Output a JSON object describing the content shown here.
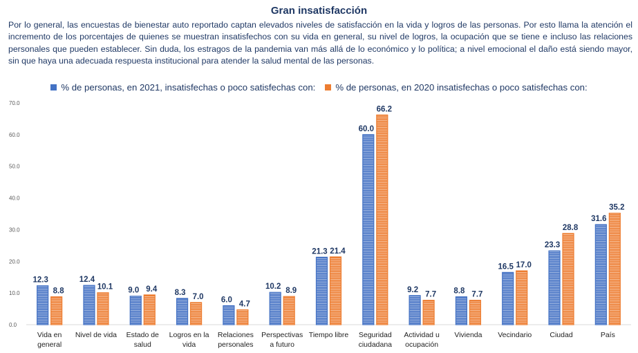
{
  "title": "Gran insatisfacción",
  "intro": "Por lo general, las encuestas de bienestar auto reportado captan elevados niveles de satisfacción en la vida y logros de las personas. Por esto llama la atención el incremento de los porcentajes de quienes se muestran insatisfechos con su vida en general, su nivel de logros, la ocupación que se tiene e incluso las relaciones personales que pueden establecer. Sin duda, los estragos de la pandemia van más allá de lo económico y lo política; a nivel emocional el daño está siendo mayor, sin que haya una adecuada respuesta institucional para atender la salud mental de las personas.",
  "legend": [
    {
      "label": "% de personas, en 2021, insatisfechas o poco satisfechas con:",
      "color": "#4472c4"
    },
    {
      "label": "% de personas, en 2020 insatisfechas o poco satisfechas con:",
      "color": "#ed7d31"
    }
  ],
  "chart_data": {
    "type": "bar",
    "categories": [
      [
        "Vida en",
        "general"
      ],
      [
        "Nivel de vida"
      ],
      [
        "Estado de",
        "salud"
      ],
      [
        "Logros en la",
        "vida"
      ],
      [
        "Relaciones",
        "personales"
      ],
      [
        "Perspectivas",
        "a futuro"
      ],
      [
        "Tiempo libre"
      ],
      [
        "Seguridad",
        "ciudadana"
      ],
      [
        "Actividad u",
        "ocupación"
      ],
      [
        "Vivienda"
      ],
      [
        "Vecindario"
      ],
      [
        "Ciudad"
      ],
      [
        "País"
      ]
    ],
    "series": [
      {
        "name": "% de personas, en 2021, insatisfechas o poco satisfechas con:",
        "color": "#4472c4",
        "values": [
          12.3,
          12.4,
          9.0,
          8.3,
          6.0,
          10.2,
          21.3,
          60.0,
          9.2,
          8.8,
          16.5,
          23.3,
          31.6
        ]
      },
      {
        "name": "% de personas, en 2020 insatisfechas o poco satisfechas con:",
        "color": "#ed7d31",
        "values": [
          8.8,
          10.1,
          9.4,
          7.0,
          4.7,
          8.9,
          21.4,
          66.2,
          7.7,
          7.7,
          17.0,
          28.8,
          35.2
        ]
      }
    ],
    "yticks": [
      "0.0",
      "10.0",
      "20.0",
      "30.0",
      "40.0",
      "50.0",
      "60.0",
      "70.0"
    ],
    "ylim": [
      0,
      70
    ],
    "xlabel": "",
    "ylabel": "",
    "grid": false,
    "legend_position": "top"
  }
}
